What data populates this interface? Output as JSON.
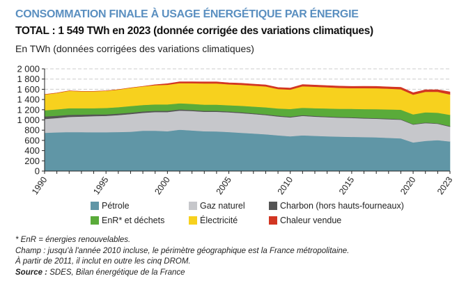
{
  "header": {
    "title": "CONSOMMATION FINALE À USAGE ÉNERGÉTIQUE PAR ÉNERGIE",
    "subtitle": "TOTAL : 1 549 TWh en 2023 (donnée corrigée des variations climatiques)",
    "unit_label": "En TWh (données corrigées des variations climatiques)"
  },
  "notes": {
    "footnote": "* EnR = énergies renouvelables.",
    "champ_line1": "Champ : jusqu'à l'année 2010 incluse, le périmètre géographique est la France métropolitaine.",
    "champ_line2": "À partir de 2011, il inclut en outre les cinq DROM.",
    "source_label": "Source :",
    "source_text": " SDES, Bilan énergétique de la France"
  },
  "chart_data": {
    "type": "area",
    "stacked": true,
    "title": "CONSOMMATION FINALE À USAGE ÉNERGÉTIQUE PAR ÉNERGIE",
    "xlabel": "",
    "ylabel": "En TWh (données corrigées des variations climatiques)",
    "ylim": [
      0,
      2000
    ],
    "xlim": [
      1990,
      2023
    ],
    "grid": "dashed horizontal at 1600, 1800, 2000",
    "legend_position": "bottom",
    "y_ticks": [
      "0",
      "200",
      "400",
      "600",
      "800",
      "1 000",
      "1 200",
      "1 400",
      "1 600",
      "1 800",
      "2 000"
    ],
    "y_tick_values": [
      0,
      200,
      400,
      600,
      800,
      1000,
      1200,
      1400,
      1600,
      1800,
      2000
    ],
    "x_tick_labels": [
      "1990",
      "1995",
      "2000",
      "2005",
      "2010",
      "2015",
      "2020",
      "2023"
    ],
    "x": [
      1990,
      1991,
      1992,
      1993,
      1994,
      1995,
      1996,
      1997,
      1998,
      1999,
      2000,
      2001,
      2002,
      2003,
      2004,
      2005,
      2006,
      2007,
      2008,
      2009,
      2010,
      2011,
      2012,
      2013,
      2014,
      2015,
      2016,
      2017,
      2018,
      2019,
      2020,
      2021,
      2022,
      2023
    ],
    "series": [
      {
        "name": "Pétrole",
        "color": "#6096a6",
        "values": [
          750,
          758,
          765,
          762,
          760,
          760,
          765,
          770,
          790,
          790,
          780,
          810,
          795,
          780,
          775,
          765,
          750,
          735,
          720,
          700,
          680,
          700,
          690,
          680,
          675,
          670,
          665,
          660,
          650,
          640,
          560,
          590,
          605,
          580
        ]
      },
      {
        "name": "Gaz naturel",
        "color": "#c6c7cb",
        "values": [
          270,
          280,
          295,
          305,
          315,
          320,
          330,
          345,
          350,
          365,
          375,
          375,
          380,
          380,
          385,
          385,
          385,
          380,
          375,
          370,
          370,
          380,
          375,
          375,
          370,
          370,
          365,
          365,
          365,
          365,
          350,
          350,
          320,
          290
        ]
      },
      {
        "name": "Charbon (hors hauts-fourneaux)",
        "color": "#555555",
        "values": [
          50,
          45,
          40,
          38,
          35,
          30,
          30,
          28,
          27,
          25,
          25,
          22,
          20,
          20,
          20,
          18,
          18,
          17,
          17,
          16,
          15,
          15,
          15,
          14,
          14,
          13,
          13,
          12,
          12,
          12,
          10,
          11,
          11,
          10
        ]
      },
      {
        "name": "EnR* et déchets",
        "color": "#5aab3a",
        "values": [
          120,
          125,
          130,
          125,
          120,
          125,
          125,
          130,
          125,
          125,
          125,
          120,
          120,
          120,
          120,
          120,
          125,
          130,
          135,
          140,
          150,
          145,
          150,
          155,
          160,
          165,
          170,
          175,
          180,
          185,
          190,
          200,
          205,
          220
        ]
      },
      {
        "name": "Électricité",
        "color": "#f7d11e",
        "values": [
          310,
          320,
          340,
          330,
          330,
          335,
          345,
          355,
          365,
          375,
          385,
          395,
          405,
          415,
          415,
          410,
          410,
          410,
          410,
          380,
          380,
          420,
          420,
          415,
          410,
          405,
          410,
          410,
          405,
          400,
          385,
          400,
          410,
          400
        ]
      },
      {
        "name": "Chaleur vendue",
        "color": "#d23622",
        "values": [
          0,
          0,
          0,
          0,
          0,
          0,
          0,
          0,
          0,
          10,
          20,
          25,
          28,
          30,
          30,
          30,
          30,
          30,
          30,
          30,
          30,
          32,
          33,
          33,
          33,
          34,
          35,
          35,
          36,
          37,
          38,
          40,
          41,
          49
        ]
      }
    ]
  },
  "legend": {
    "items": [
      {
        "label": "Pétrole",
        "color": "#6096a6"
      },
      {
        "label": "Gaz naturel",
        "color": "#c6c7cb"
      },
      {
        "label": "Charbon (hors hauts-fourneaux)",
        "color": "#555555"
      },
      {
        "label": "EnR* et déchets",
        "color": "#5aab3a"
      },
      {
        "label": "Électricité",
        "color": "#f7d11e"
      },
      {
        "label": "Chaleur vendue",
        "color": "#d23622"
      }
    ]
  }
}
